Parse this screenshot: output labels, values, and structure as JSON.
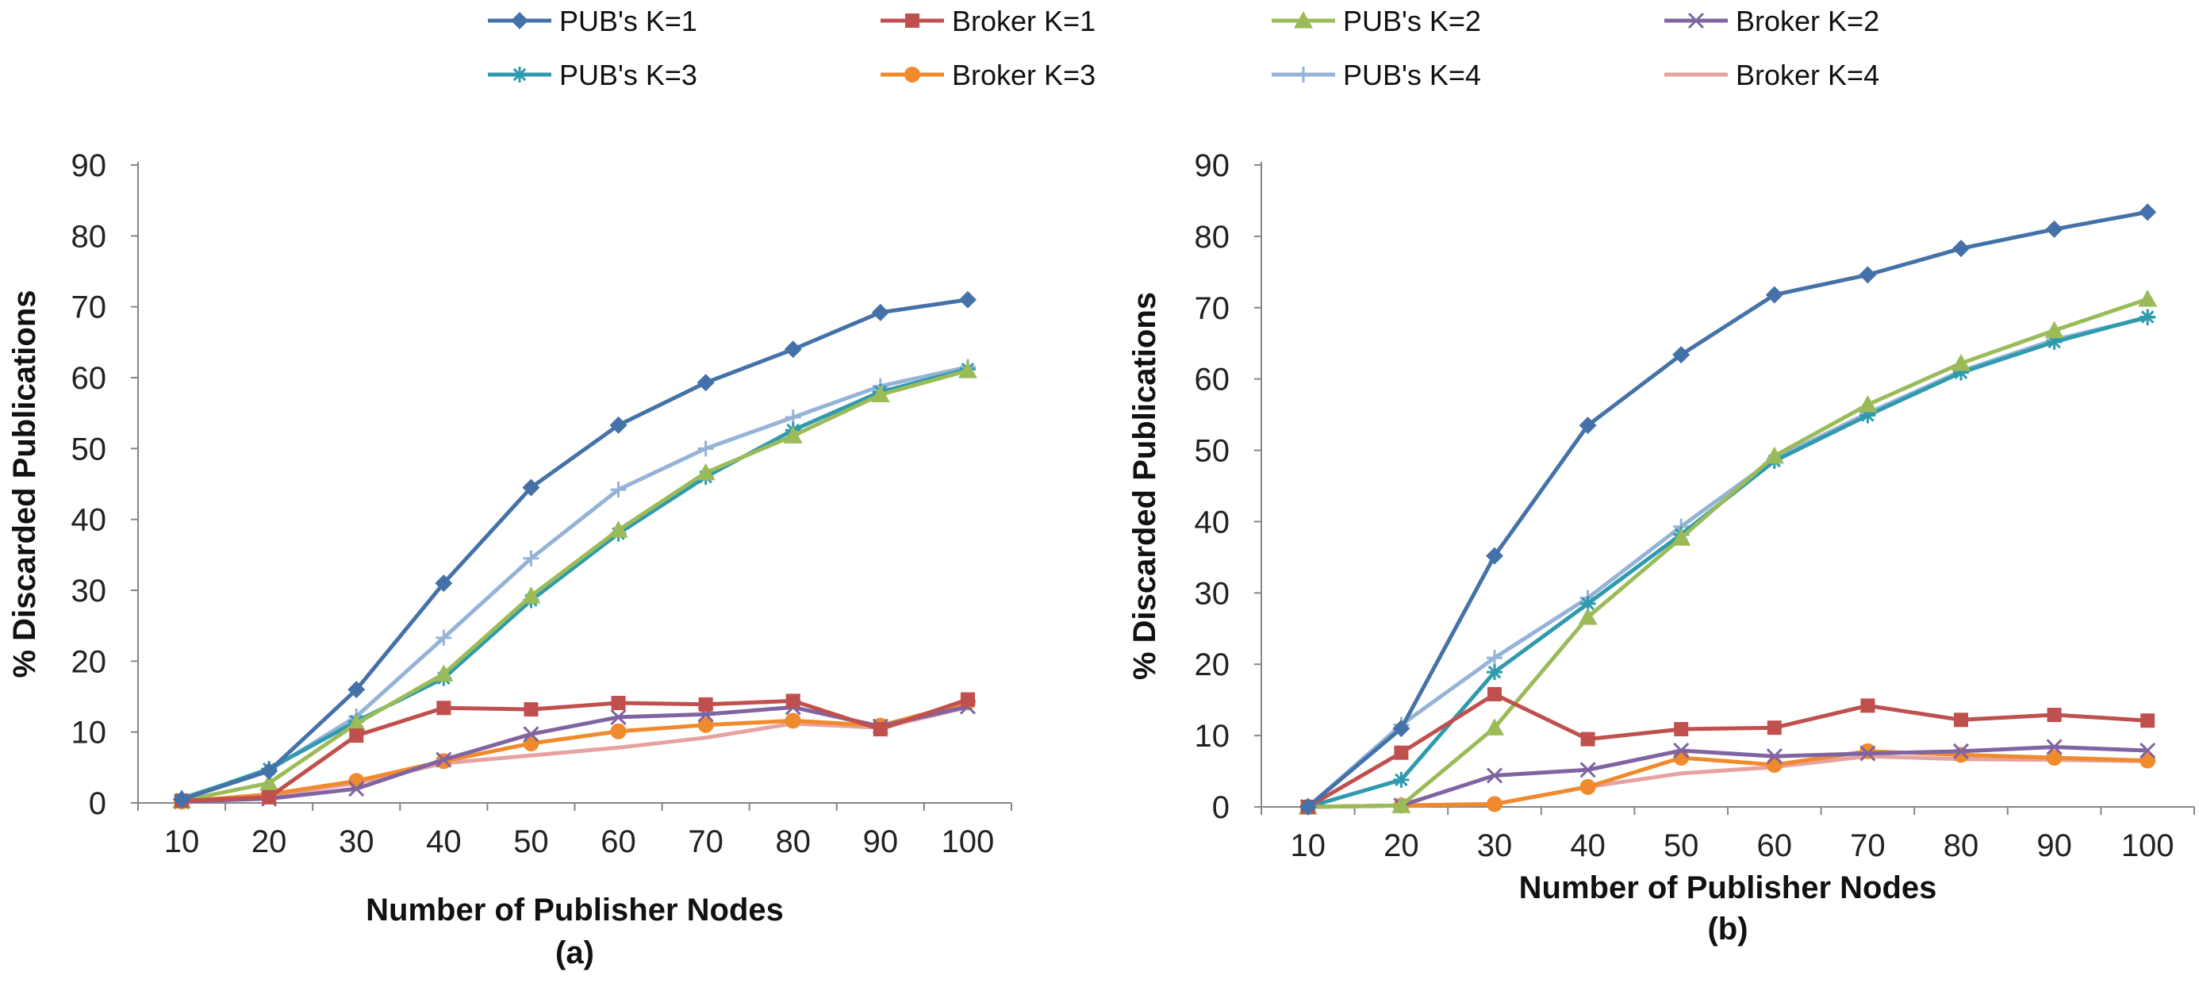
{
  "legend": [
    {
      "name": "PUB's K=1",
      "color": "#4472A8",
      "marker": "diamond"
    },
    {
      "name": "Broker K=1",
      "color": "#C0504D",
      "marker": "square"
    },
    {
      "name": "PUB's K=2",
      "color": "#9BBB59",
      "marker": "triangle"
    },
    {
      "name": "Broker K=2",
      "color": "#8064A2",
      "marker": "x"
    },
    {
      "name": "PUB's K=3",
      "color": "#2F9AAE",
      "marker": "star"
    },
    {
      "name": "Broker K=3",
      "color": "#F08A2C",
      "marker": "circle"
    },
    {
      "name": "PUB's K=4",
      "color": "#95B3D7",
      "marker": "plus"
    },
    {
      "name": "Broker K=4",
      "color": "#E6A2A0",
      "marker": "none"
    }
  ],
  "chart_data": [
    {
      "type": "line",
      "title": "(a)",
      "xlabel": "Number of Publisher Nodes",
      "ylabel": "% Discarded Publications",
      "x": [
        10,
        20,
        30,
        40,
        50,
        60,
        70,
        80,
        90,
        100
      ],
      "ylim": [
        0,
        90
      ],
      "yticks": [
        0,
        10,
        20,
        30,
        40,
        50,
        60,
        70,
        80,
        90
      ],
      "series": [
        {
          "name": "PUB's K=1",
          "values": [
            0.5,
            4.5,
            16,
            31,
            44.5,
            53.3,
            59.3,
            64,
            69.2,
            71
          ]
        },
        {
          "name": "Broker K=1",
          "values": [
            0.3,
            0.8,
            9.5,
            13.4,
            13.2,
            14.1,
            13.9,
            14.4,
            10.4,
            14.6
          ]
        },
        {
          "name": "PUB's K=2",
          "values": [
            0.3,
            2.8,
            11.2,
            18.2,
            29.2,
            38.5,
            46.6,
            51.8,
            57.6,
            61
          ]
        },
        {
          "name": "Broker K=2",
          "values": [
            0.2,
            0.6,
            2,
            6.1,
            9.7,
            12.1,
            12.5,
            13.5,
            10.8,
            13.6
          ]
        },
        {
          "name": "PUB's K=3",
          "values": [
            0.5,
            4.8,
            11.5,
            17.6,
            28.6,
            38,
            46,
            52.6,
            58,
            61.2
          ]
        },
        {
          "name": "Broker K=3",
          "values": [
            0.2,
            1.2,
            3.1,
            5.9,
            8.4,
            10.1,
            11,
            11.6,
            10.9,
            14.2
          ]
        },
        {
          "name": "PUB's K=4",
          "values": [
            0.7,
            4.6,
            12.2,
            23.3,
            34.5,
            44.2,
            50,
            54.4,
            58.8,
            61.5
          ]
        },
        {
          "name": "Broker K=4",
          "values": [
            0.2,
            1,
            2.8,
            5.6,
            6.7,
            7.8,
            9.2,
            11.2,
            10.6,
            13.5
          ]
        }
      ]
    },
    {
      "type": "line",
      "title": "(b)",
      "xlabel": "Number of Publisher Nodes",
      "ylabel": "% Discarded Publications",
      "x": [
        10,
        20,
        30,
        40,
        50,
        60,
        70,
        80,
        90,
        100
      ],
      "ylim": [
        0,
        90
      ],
      "yticks": [
        0,
        10,
        20,
        30,
        40,
        50,
        60,
        70,
        80,
        90
      ],
      "series": [
        {
          "name": "PUB's K=1",
          "values": [
            0,
            11,
            35.2,
            53.5,
            63.4,
            71.8,
            74.6,
            78.3,
            81,
            83.4
          ]
        },
        {
          "name": "Broker K=1",
          "values": [
            0,
            7.6,
            15.8,
            9.5,
            10.9,
            11.1,
            14.2,
            12.2,
            12.9,
            12.1
          ]
        },
        {
          "name": "PUB's K=2",
          "values": [
            0,
            0.2,
            11.1,
            26.6,
            37.7,
            49.2,
            56.4,
            62.2,
            66.8,
            71.2
          ]
        },
        {
          "name": "Broker K=2",
          "values": [
            0,
            0.2,
            4.4,
            5.2,
            7.9,
            7.1,
            7.5,
            7.8,
            8.4,
            7.9
          ]
        },
        {
          "name": "PUB's K=3",
          "values": [
            0,
            3.8,
            18.9,
            28.5,
            38.2,
            48.5,
            54.9,
            60.9,
            65.2,
            68.7
          ]
        },
        {
          "name": "Broker K=3",
          "values": [
            0,
            0.2,
            0.4,
            2.8,
            6.9,
            5.9,
            7.8,
            7.3,
            6.9,
            6.5
          ]
        },
        {
          "name": "PUB's K=4",
          "values": [
            0,
            11.5,
            20.9,
            29.3,
            39.3,
            48.8,
            55.2,
            61.1,
            65.5,
            68.6
          ]
        },
        {
          "name": "Broker K=4",
          "values": [
            0,
            0.2,
            0.4,
            2.8,
            4.7,
            5.6,
            7.1,
            6.7,
            6.6,
            6.4
          ]
        }
      ]
    }
  ]
}
